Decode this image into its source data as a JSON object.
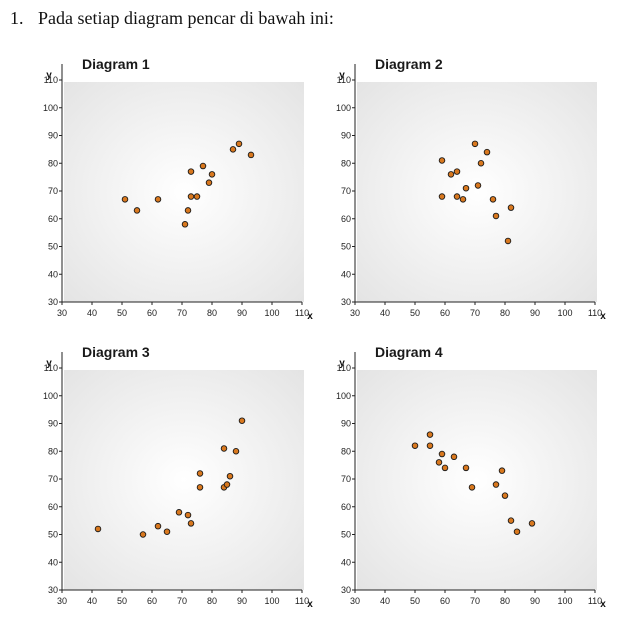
{
  "question": {
    "number": "1.",
    "text": "Pada setiap diagram pencar di bawah ini:"
  },
  "style": {
    "point_fill": "#d9781e",
    "point_stroke": "#1a1a1a",
    "bg_center": "#ffffff",
    "bg_edge": "#e4e4e4"
  },
  "chart_data": [
    {
      "type": "scatter",
      "title": "Diagram 1",
      "xlabel": "x",
      "ylabel": "y",
      "xlim": [
        30,
        110
      ],
      "ylim": [
        30,
        110
      ],
      "xticks": [
        30,
        40,
        50,
        60,
        70,
        80,
        90,
        100,
        110
      ],
      "yticks": [
        30,
        40,
        50,
        60,
        70,
        80,
        90,
        100,
        110
      ],
      "points": [
        [
          51,
          67
        ],
        [
          55,
          63
        ],
        [
          62,
          67
        ],
        [
          71,
          58
        ],
        [
          72,
          63
        ],
        [
          73,
          68
        ],
        [
          73,
          77
        ],
        [
          75,
          68
        ],
        [
          77,
          79
        ],
        [
          79,
          73
        ],
        [
          80,
          76
        ],
        [
          87,
          85
        ],
        [
          89,
          87
        ],
        [
          93,
          83
        ]
      ]
    },
    {
      "type": "scatter",
      "title": "Diagram 2",
      "xlabel": "x",
      "ylabel": "y",
      "xlim": [
        30,
        110
      ],
      "ylim": [
        30,
        110
      ],
      "xticks": [
        30,
        40,
        50,
        60,
        70,
        80,
        90,
        100,
        110
      ],
      "yticks": [
        30,
        40,
        50,
        60,
        70,
        80,
        90,
        100,
        110
      ],
      "points": [
        [
          59,
          81
        ],
        [
          59,
          68
        ],
        [
          62,
          76
        ],
        [
          64,
          77
        ],
        [
          64,
          68
        ],
        [
          66,
          67
        ],
        [
          67,
          71
        ],
        [
          70,
          87
        ],
        [
          71,
          72
        ],
        [
          72,
          80
        ],
        [
          74,
          84
        ],
        [
          76,
          67
        ],
        [
          77,
          61
        ],
        [
          81,
          52
        ],
        [
          82,
          64
        ]
      ]
    },
    {
      "type": "scatter",
      "title": "Diagram 3",
      "xlabel": "x",
      "ylabel": "y",
      "xlim": [
        30,
        110
      ],
      "ylim": [
        30,
        110
      ],
      "xticks": [
        30,
        40,
        50,
        60,
        70,
        80,
        90,
        100,
        110
      ],
      "yticks": [
        30,
        40,
        50,
        60,
        70,
        80,
        90,
        100,
        110
      ],
      "points": [
        [
          42,
          52
        ],
        [
          57,
          50
        ],
        [
          62,
          53
        ],
        [
          65,
          51
        ],
        [
          69,
          58
        ],
        [
          72,
          57
        ],
        [
          73,
          54
        ],
        [
          76,
          72
        ],
        [
          76,
          67
        ],
        [
          84,
          67
        ],
        [
          84,
          81
        ],
        [
          85,
          68
        ],
        [
          86,
          71
        ],
        [
          88,
          80
        ],
        [
          90,
          91
        ]
      ]
    },
    {
      "type": "scatter",
      "title": "Diagram 4",
      "xlabel": "x",
      "ylabel": "y",
      "xlim": [
        30,
        110
      ],
      "ylim": [
        30,
        110
      ],
      "xticks": [
        30,
        40,
        50,
        60,
        70,
        80,
        90,
        100,
        110
      ],
      "yticks": [
        30,
        40,
        50,
        60,
        70,
        80,
        90,
        100,
        110
      ],
      "points": [
        [
          50,
          82
        ],
        [
          55,
          86
        ],
        [
          55,
          82
        ],
        [
          58,
          76
        ],
        [
          59,
          79
        ],
        [
          60,
          74
        ],
        [
          63,
          78
        ],
        [
          67,
          74
        ],
        [
          69,
          67
        ],
        [
          77,
          68
        ],
        [
          79,
          73
        ],
        [
          80,
          64
        ],
        [
          82,
          55
        ],
        [
          84,
          51
        ],
        [
          89,
          54
        ]
      ]
    }
  ]
}
